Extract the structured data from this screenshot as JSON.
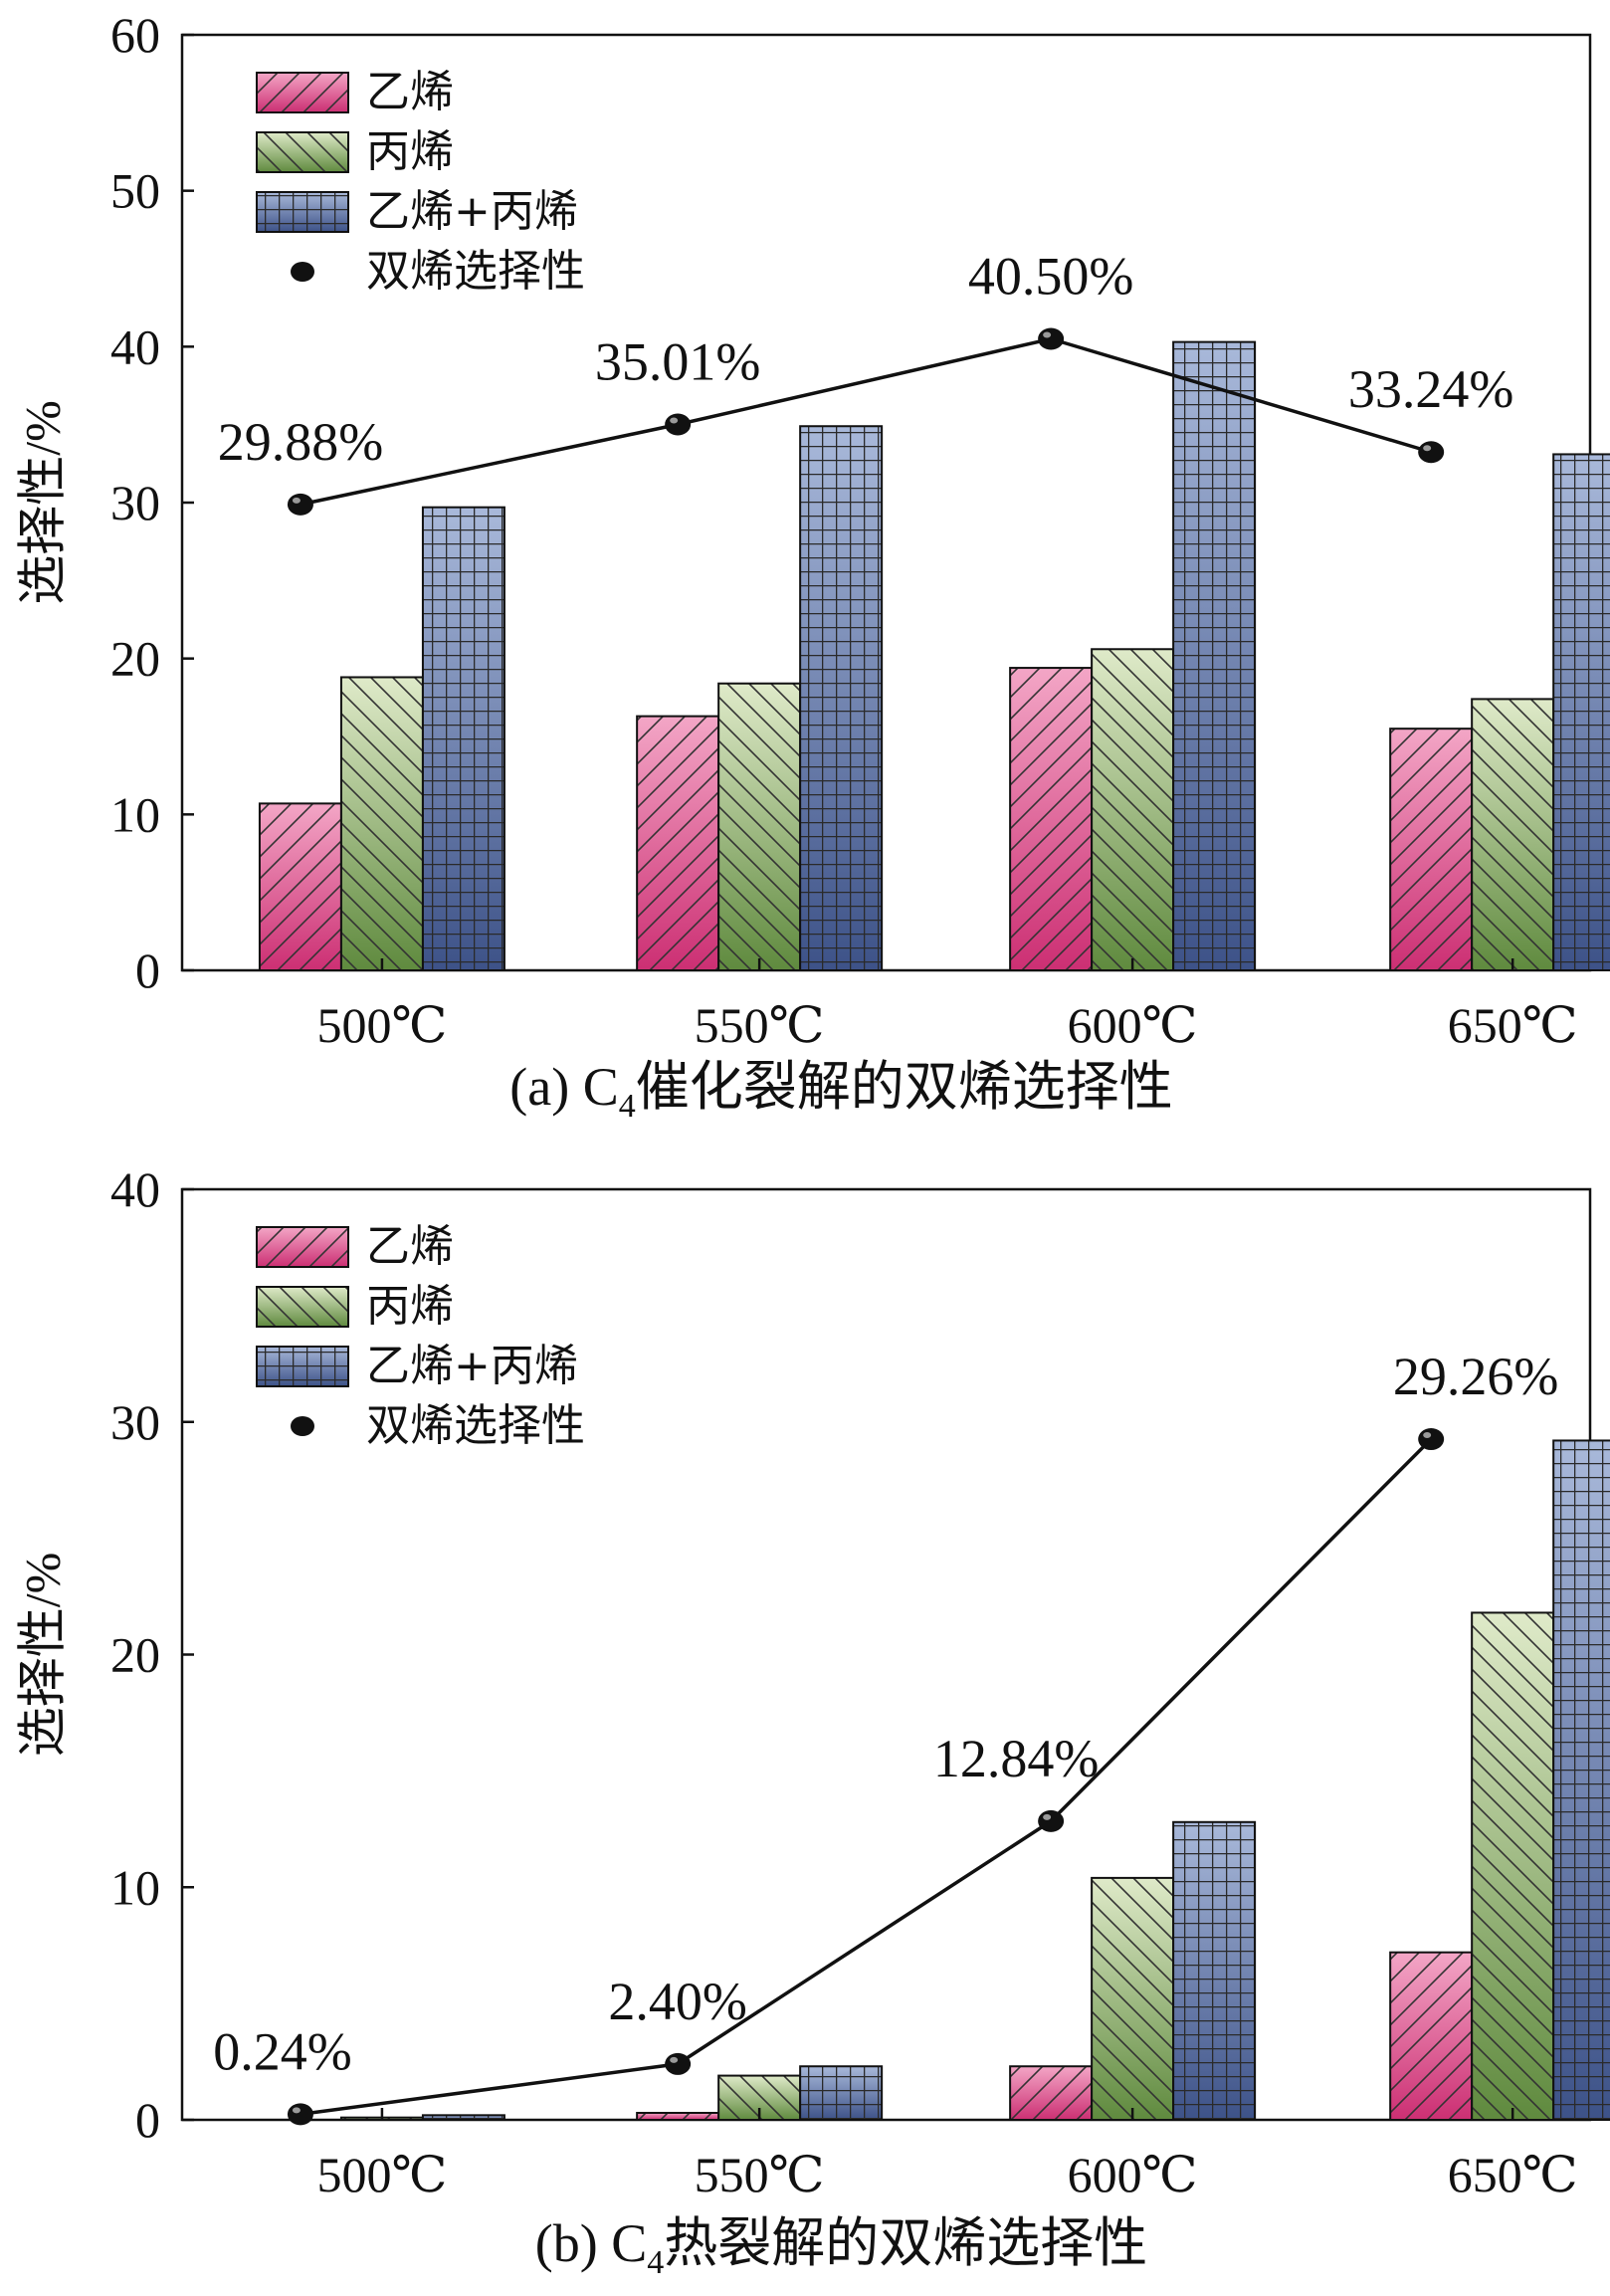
{
  "chart_data": [
    {
      "type": "bar",
      "id": "a",
      "title": "(a) C₄催化裂解的双烯选择性",
      "caption_prefix": "(a) C",
      "caption_sub": "4",
      "caption_suffix": "催化裂解的双烯选择性",
      "xlabel": "",
      "ylabel": "选择性/%",
      "ylim": [
        0,
        60
      ],
      "yticks": [
        0,
        10,
        20,
        30,
        40,
        50,
        60
      ],
      "categories": [
        "500℃",
        "550℃",
        "600℃",
        "650℃"
      ],
      "series": [
        {
          "name": "乙烯",
          "values": [
            10.7,
            16.3,
            19.4,
            15.5
          ],
          "pattern": "diag-up",
          "color_top": "#f3a6c6",
          "color_bottom": "#cc2f73"
        },
        {
          "name": "丙烯",
          "values": [
            18.8,
            18.4,
            20.6,
            17.4
          ],
          "pattern": "diag-down",
          "color_top": "#dfeac9",
          "color_bottom": "#5f8a3e"
        },
        {
          "name": "乙烯+丙烯",
          "values": [
            29.7,
            34.9,
            40.3,
            33.1
          ],
          "pattern": "grid",
          "color_top": "#a9b9da",
          "color_bottom": "#3d5288"
        }
      ],
      "line": {
        "name": "双烯选择性",
        "values": [
          29.88,
          35.01,
          40.5,
          33.24
        ],
        "labels": [
          "29.88%",
          "35.01%",
          "40.50%",
          "33.24%"
        ]
      },
      "legend": "top-left"
    },
    {
      "type": "bar",
      "id": "b",
      "title": "(b) C₄热裂解的双烯选择性",
      "caption_prefix": "(b) C",
      "caption_sub": "4",
      "caption_suffix": "热裂解的双烯选择性",
      "xlabel": "",
      "ylabel": "选择性/%",
      "ylim": [
        0,
        40
      ],
      "yticks": [
        0,
        10,
        20,
        30,
        40
      ],
      "categories": [
        "500℃",
        "550℃",
        "600℃",
        "650℃"
      ],
      "series": [
        {
          "name": "乙烯",
          "values": [
            0.0,
            0.3,
            2.3,
            7.2
          ],
          "pattern": "diag-up",
          "color_top": "#f3a6c6",
          "color_bottom": "#cc2f73"
        },
        {
          "name": "丙烯",
          "values": [
            0.1,
            1.9,
            10.4,
            21.8
          ],
          "pattern": "diag-down",
          "color_top": "#dfeac9",
          "color_bottom": "#5f8a3e"
        },
        {
          "name": "乙烯+丙烯",
          "values": [
            0.2,
            2.3,
            12.8,
            29.2
          ],
          "pattern": "grid",
          "color_top": "#a9b9da",
          "color_bottom": "#3d5288"
        }
      ],
      "line": {
        "name": "双烯选择性",
        "values": [
          0.24,
          2.4,
          12.84,
          29.26
        ],
        "labels": [
          "0.24%",
          "2.40%",
          "12.84%",
          "29.26%"
        ]
      },
      "legend": "top-left"
    }
  ]
}
